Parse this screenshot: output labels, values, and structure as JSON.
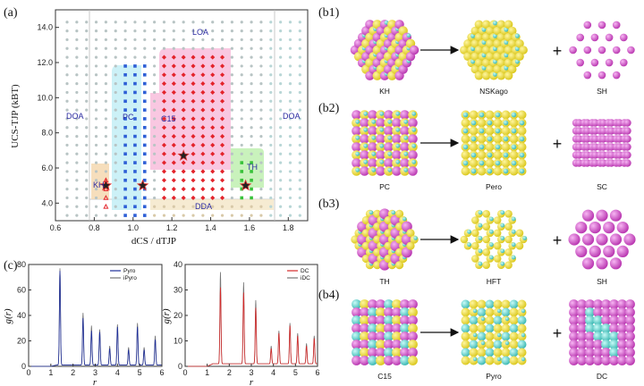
{
  "panel_labels": {
    "a": "(a)",
    "b1": "(b1)",
    "b2": "(b2)",
    "b3": "(b3)",
    "b4": "(b4)",
    "c": "(c)"
  },
  "chart_data": [
    {
      "type": "scatter",
      "panel": "a",
      "xlabel": "dCS / dTJP",
      "ylabel": "UCS-TJP (kBT)",
      "xlim": [
        0.6,
        1.9
      ],
      "ylim": [
        3.0,
        15.0
      ],
      "xticks": [
        "0.6",
        "0.8",
        "1.0",
        "1.2",
        "1.4",
        "1.6",
        "1.8"
      ],
      "yticks": [
        "4.0",
        "6.0",
        "8.0",
        "10.0",
        "12.0",
        "14.0"
      ],
      "regions": [
        "LOA",
        "DOA",
        "PC",
        "C15",
        "TH",
        "KH",
        "DDA",
        "DOA"
      ],
      "stars": [
        {
          "x": 0.86,
          "y": 5.0
        },
        {
          "x": 1.05,
          "y": 5.0
        },
        {
          "x": 1.26,
          "y": 6.7
        },
        {
          "x": 1.58,
          "y": 5.0
        }
      ]
    },
    {
      "type": "line",
      "panel": "c-left",
      "xlabel": "r",
      "ylabel": "g(r)",
      "xlim": [
        0,
        6
      ],
      "ylim": [
        0,
        80
      ],
      "xticks": [
        "0",
        "1",
        "2",
        "3",
        "4",
        "5",
        "6"
      ],
      "yticks": [
        "0",
        "20",
        "40",
        "60",
        "80"
      ],
      "series": [
        {
          "name": "Pyro",
          "color": "#1f2f9a",
          "peaks": [
            [
              1.41,
              74
            ],
            [
              2.45,
              37
            ],
            [
              2.83,
              27
            ],
            [
              3.2,
              26
            ],
            [
              3.65,
              13
            ],
            [
              4.0,
              30
            ],
            [
              4.5,
              12
            ],
            [
              4.9,
              30
            ],
            [
              5.2,
              12
            ],
            [
              5.7,
              20
            ]
          ]
        },
        {
          "name": "iPyro",
          "color": "#777777",
          "peaks": [
            [
              1.41,
              76
            ],
            [
              2.45,
              41
            ],
            [
              2.83,
              31
            ],
            [
              3.2,
              28
            ],
            [
              3.65,
              15
            ],
            [
              4.0,
              32
            ],
            [
              4.5,
              14
            ],
            [
              4.9,
              33
            ],
            [
              5.2,
              14
            ],
            [
              5.7,
              23
            ]
          ]
        }
      ]
    },
    {
      "type": "line",
      "panel": "c-right",
      "xlabel": "r",
      "ylabel": "g(r)",
      "xlim": [
        0,
        6
      ],
      "ylim": [
        0,
        40
      ],
      "xticks": [
        "0",
        "1",
        "2",
        "3",
        "4",
        "5",
        "6"
      ],
      "yticks": [
        "0",
        "10",
        "20",
        "30",
        "40"
      ],
      "series": [
        {
          "name": "DC",
          "color": "#d42a2a",
          "peaks": [
            [
              1.6,
              30
            ],
            [
              2.65,
              28
            ],
            [
              3.2,
              22
            ],
            [
              3.9,
              6
            ],
            [
              4.25,
              12
            ],
            [
              4.75,
              15
            ],
            [
              5.1,
              11
            ],
            [
              5.5,
              7
            ],
            [
              5.85,
              10
            ]
          ]
        },
        {
          "name": "iDC",
          "color": "#777777",
          "peaks": [
            [
              1.6,
              36
            ],
            [
              2.65,
              32
            ],
            [
              3.2,
              25
            ],
            [
              3.9,
              7
            ],
            [
              4.25,
              13
            ],
            [
              4.75,
              16
            ],
            [
              5.1,
              12
            ],
            [
              5.5,
              8
            ],
            [
              5.85,
              11
            ]
          ]
        }
      ]
    }
  ],
  "panel_b": {
    "rows": [
      {
        "id": "b1",
        "labels": [
          "KH",
          "NSKago",
          "SH"
        ]
      },
      {
        "id": "b2",
        "labels": [
          "PC",
          "Pero",
          "SC"
        ]
      },
      {
        "id": "b3",
        "labels": [
          "TH",
          "HFT",
          "SH"
        ]
      },
      {
        "id": "b4",
        "labels": [
          "C15",
          "Pyro",
          "DC"
        ]
      }
    ],
    "plus": "+"
  },
  "colors": {
    "magenta": "#d64fcf",
    "yellow": "#f2e02a",
    "cyan": "#5fd3cf",
    "red": "#e3242b",
    "blue": "#2e5fd6",
    "green": "#38c23a"
  }
}
